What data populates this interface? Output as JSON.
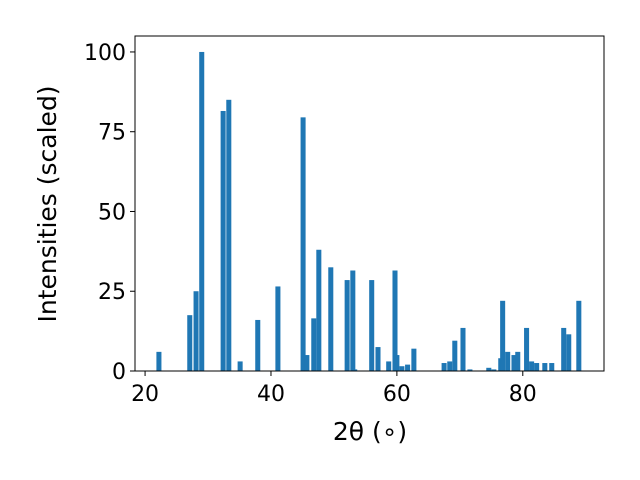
{
  "chart_data": {
    "type": "bar",
    "xlabel": "2θ (∘)",
    "ylabel": "Intensities (scaled)",
    "x": [
      22.2,
      27.1,
      28.1,
      29.0,
      32.4,
      33.3,
      35.1,
      37.9,
      41.1,
      45.1,
      45.7,
      46.8,
      47.6,
      49.5,
      52.1,
      53.0,
      53.3,
      56.0,
      57.0,
      58.7,
      59.7,
      60.0,
      60.8,
      61.7,
      62.7,
      67.5,
      68.4,
      69.2,
      70.5,
      71.6,
      74.6,
      75.4,
      76.5,
      76.8,
      77.6,
      78.6,
      79.2,
      80.6,
      81.4,
      82.2,
      83.5,
      84.6,
      86.5,
      87.3,
      88.9
    ],
    "values": [
      6,
      17.5,
      25,
      100,
      81.5,
      85,
      3,
      16,
      26.5,
      79.5,
      5,
      16.5,
      38,
      32.5,
      28.5,
      31.5,
      0.5,
      28.5,
      7.5,
      3,
      31.5,
      5,
      1.5,
      2,
      7,
      2.5,
      3,
      9.5,
      13.5,
      0.5,
      1,
      0.5,
      4,
      22,
      6,
      5,
      6,
      13.5,
      3,
      2.5,
      2.5,
      2.5,
      13.5,
      11.5,
      22
    ],
    "bar_width": 0.8,
    "color": "#1f77b4",
    "xlim": [
      18.4,
      92.9
    ],
    "xticks": [
      20,
      40,
      60,
      80
    ],
    "ylim": [
      0,
      105
    ],
    "yticks": [
      0,
      25,
      50,
      75,
      100
    ]
  }
}
